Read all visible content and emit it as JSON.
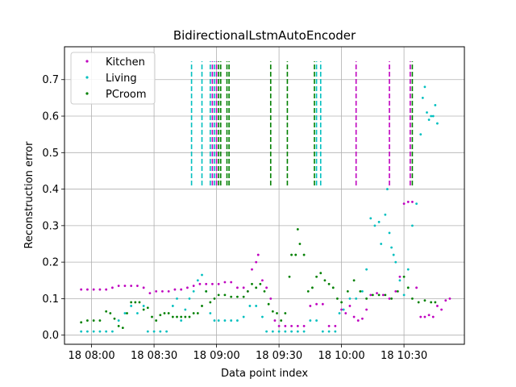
{
  "chart_data": {
    "type": "scatter",
    "title": "BidirectionalLstmAutoEncoder",
    "xlabel": "Data point index",
    "ylabel": "Reconstruction error",
    "xlim": [
      "18 07:47",
      "18 10:59"
    ],
    "ylim": [
      -0.025,
      0.79
    ],
    "xticks": [
      {
        "t": "18 08:00",
        "label": "18 08:00"
      },
      {
        "t": "18 08:30",
        "label": "18 08:30"
      },
      {
        "t": "18 09:00",
        "label": "18 09:00"
      },
      {
        "t": "18 09:30",
        "label": "18 09:30"
      },
      {
        "t": "18 10:00",
        "label": "18 10:00"
      },
      {
        "t": "18 10:30",
        "label": "18 10:30"
      }
    ],
    "yticks": [
      0.0,
      0.1,
      0.2,
      0.3,
      0.4,
      0.5,
      0.6,
      0.7
    ],
    "ytick_labels": [
      "0.0",
      "0.1",
      "0.2",
      "0.3",
      "0.4",
      "0.5",
      "0.6",
      "0.7"
    ],
    "grid": true,
    "legend_position": "top-left",
    "series": [
      {
        "name": "Kitchen",
        "color": "#bf00bf",
        "marker": "dot",
        "points": [
          [
            "18 07:55",
            0.125
          ],
          [
            "18 07:58",
            0.125
          ],
          [
            "18 08:01",
            0.125
          ],
          [
            "18 08:04",
            0.125
          ],
          [
            "18 08:07",
            0.125
          ],
          [
            "18 08:10",
            0.13
          ],
          [
            "18 08:13",
            0.135
          ],
          [
            "18 08:16",
            0.135
          ],
          [
            "18 08:19",
            0.135
          ],
          [
            "18 08:22",
            0.135
          ],
          [
            "18 08:25",
            0.13
          ],
          [
            "18 08:28",
            0.115
          ],
          [
            "18 08:31",
            0.12
          ],
          [
            "18 08:34",
            0.12
          ],
          [
            "18 08:37",
            0.12
          ],
          [
            "18 08:40",
            0.125
          ],
          [
            "18 08:43",
            0.125
          ],
          [
            "18 08:46",
            0.13
          ],
          [
            "18 08:49",
            0.135
          ],
          [
            "18 08:52",
            0.14
          ],
          [
            "18 08:55",
            0.14
          ],
          [
            "18 08:58",
            0.14
          ],
          [
            "18 09:01",
            0.14
          ],
          [
            "18 09:04",
            0.145
          ],
          [
            "18 09:07",
            0.145
          ],
          [
            "18 09:10",
            0.13
          ],
          [
            "18 09:13",
            0.13
          ],
          [
            "18 09:15",
            0.12
          ],
          [
            "18 09:17",
            0.18
          ],
          [
            "18 09:19",
            0.2
          ],
          [
            "18 09:20",
            0.22
          ],
          [
            "18 09:22",
            0.15
          ],
          [
            "18 09:24",
            0.13
          ],
          [
            "18 09:26",
            0.1
          ],
          [
            "18 09:28",
            0.04
          ],
          [
            "18 09:30",
            0.025
          ],
          [
            "18 09:33",
            0.025
          ],
          [
            "18 09:36",
            0.025
          ],
          [
            "18 09:39",
            0.025
          ],
          [
            "18 09:42",
            0.025
          ],
          [
            "18 09:45",
            0.08
          ],
          [
            "18 09:48",
            0.085
          ],
          [
            "18 09:51",
            0.085
          ],
          [
            "18 09:54",
            0.025
          ],
          [
            "18 09:57",
            0.025
          ],
          [
            "18 10:00",
            0.07
          ],
          [
            "18 10:02",
            0.06
          ],
          [
            "18 10:04",
            0.08
          ],
          [
            "18 10:06",
            0.05
          ],
          [
            "18 10:08",
            0.04
          ],
          [
            "18 10:10",
            0.045
          ],
          [
            "18 10:12",
            0.07
          ],
          [
            "18 10:14",
            0.11
          ],
          [
            "18 10:17",
            0.115
          ],
          [
            "18 10:20",
            0.11
          ],
          [
            "18 10:23",
            0.1
          ],
          [
            "18 10:26",
            0.12
          ],
          [
            "18 10:28",
            0.16
          ],
          [
            "18 10:30",
            0.36
          ],
          [
            "18 10:32",
            0.365
          ],
          [
            "18 10:34",
            0.365
          ],
          [
            "18 10:36",
            0.13
          ],
          [
            "18 10:38",
            0.05
          ],
          [
            "18 10:40",
            0.05
          ],
          [
            "18 10:42",
            0.055
          ],
          [
            "18 10:44",
            0.05
          ],
          [
            "18 10:46",
            0.08
          ],
          [
            "18 10:48",
            0.07
          ],
          [
            "18 10:50",
            0.095
          ],
          [
            "18 10:52",
            0.1
          ]
        ]
      },
      {
        "name": "Living",
        "color": "#00bfbf",
        "marker": "dot",
        "points": [
          [
            "18 07:55",
            0.01
          ],
          [
            "18 07:58",
            0.01
          ],
          [
            "18 08:01",
            0.01
          ],
          [
            "18 08:04",
            0.01
          ],
          [
            "18 08:07",
            0.01
          ],
          [
            "18 08:10",
            0.01
          ],
          [
            "18 08:13",
            0.04
          ],
          [
            "18 08:16",
            0.06
          ],
          [
            "18 08:19",
            0.08
          ],
          [
            "18 08:22",
            0.06
          ],
          [
            "18 08:25",
            0.08
          ],
          [
            "18 08:27",
            0.01
          ],
          [
            "18 08:30",
            0.01
          ],
          [
            "18 08:33",
            0.01
          ],
          [
            "18 08:36",
            0.01
          ],
          [
            "18 08:39",
            0.08
          ],
          [
            "18 08:41",
            0.1
          ],
          [
            "18 08:43",
            0.04
          ],
          [
            "18 08:45",
            0.07
          ],
          [
            "18 08:47",
            0.1
          ],
          [
            "18 08:49",
            0.12
          ],
          [
            "18 08:51",
            0.15
          ],
          [
            "18 08:53",
            0.165
          ],
          [
            "18 08:55",
            0.12
          ],
          [
            "18 08:57",
            0.06
          ],
          [
            "18 08:59",
            0.04
          ],
          [
            "18 09:01",
            0.04
          ],
          [
            "18 09:04",
            0.04
          ],
          [
            "18 09:07",
            0.04
          ],
          [
            "18 09:10",
            0.04
          ],
          [
            "18 09:13",
            0.05
          ],
          [
            "18 09:16",
            0.08
          ],
          [
            "18 09:19",
            0.08
          ],
          [
            "18 09:22",
            0.05
          ],
          [
            "18 09:24",
            0.01
          ],
          [
            "18 09:27",
            0.01
          ],
          [
            "18 09:30",
            0.01
          ],
          [
            "18 09:33",
            0.01
          ],
          [
            "18 09:36",
            0.01
          ],
          [
            "18 09:39",
            0.01
          ],
          [
            "18 09:42",
            0.01
          ],
          [
            "18 09:45",
            0.04
          ],
          [
            "18 09:48",
            0.04
          ],
          [
            "18 09:51",
            0.01
          ],
          [
            "18 09:54",
            0.01
          ],
          [
            "18 09:57",
            0.01
          ],
          [
            "18 09:59",
            0.06
          ],
          [
            "18 10:01",
            0.07
          ],
          [
            "18 10:04",
            0.1
          ],
          [
            "18 10:07",
            0.1
          ],
          [
            "18 10:10",
            0.12
          ],
          [
            "18 10:12",
            0.18
          ],
          [
            "18 10:14",
            0.32
          ],
          [
            "18 10:16",
            0.3
          ],
          [
            "18 10:18",
            0.31
          ],
          [
            "18 10:19",
            0.25
          ],
          [
            "18 10:21",
            0.33
          ],
          [
            "18 10:22",
            0.4
          ],
          [
            "18 10:23",
            0.28
          ],
          [
            "18 10:24",
            0.24
          ],
          [
            "18 10:25",
            0.22
          ],
          [
            "18 10:26",
            0.2
          ],
          [
            "18 10:28",
            0.15
          ],
          [
            "18 10:30",
            0.11
          ],
          [
            "18 10:32",
            0.18
          ],
          [
            "18 10:34",
            0.3
          ],
          [
            "18 10:36",
            0.36
          ],
          [
            "18 10:38",
            0.55
          ],
          [
            "18 10:39",
            0.65
          ],
          [
            "18 10:40",
            0.68
          ],
          [
            "18 10:41",
            0.61
          ],
          [
            "18 10:42",
            0.59
          ],
          [
            "18 10:43",
            0.6
          ],
          [
            "18 10:44",
            0.6
          ],
          [
            "18 10:45",
            0.63
          ],
          [
            "18 10:46",
            0.58
          ]
        ]
      },
      {
        "name": "PCroom",
        "color": "#008000",
        "marker": "dot",
        "points": [
          [
            "18 07:55",
            0.035
          ],
          [
            "18 07:58",
            0.04
          ],
          [
            "18 08:01",
            0.04
          ],
          [
            "18 08:04",
            0.04
          ],
          [
            "18 08:07",
            0.065
          ],
          [
            "18 08:09",
            0.06
          ],
          [
            "18 08:11",
            0.045
          ],
          [
            "18 08:13",
            0.025
          ],
          [
            "18 08:15",
            0.02
          ],
          [
            "18 08:17",
            0.06
          ],
          [
            "18 08:19",
            0.09
          ],
          [
            "18 08:21",
            0.09
          ],
          [
            "18 08:23",
            0.09
          ],
          [
            "18 08:25",
            0.07
          ],
          [
            "18 08:27",
            0.075
          ],
          [
            "18 08:29",
            0.05
          ],
          [
            "18 08:31",
            0.04
          ],
          [
            "18 08:33",
            0.055
          ],
          [
            "18 08:35",
            0.06
          ],
          [
            "18 08:37",
            0.06
          ],
          [
            "18 08:39",
            0.05
          ],
          [
            "18 08:41",
            0.05
          ],
          [
            "18 08:43",
            0.05
          ],
          [
            "18 08:45",
            0.05
          ],
          [
            "18 08:47",
            0.05
          ],
          [
            "18 08:49",
            0.06
          ],
          [
            "18 08:51",
            0.06
          ],
          [
            "18 08:53",
            0.08
          ],
          [
            "18 08:55",
            0.12
          ],
          [
            "18 08:57",
            0.09
          ],
          [
            "18 08:59",
            0.1
          ],
          [
            "18 09:01",
            0.11
          ],
          [
            "18 09:04",
            0.11
          ],
          [
            "18 09:07",
            0.105
          ],
          [
            "18 09:10",
            0.105
          ],
          [
            "18 09:13",
            0.105
          ],
          [
            "18 09:15",
            0.12
          ],
          [
            "18 09:17",
            0.14
          ],
          [
            "18 09:19",
            0.13
          ],
          [
            "18 09:21",
            0.14
          ],
          [
            "18 09:23",
            0.12
          ],
          [
            "18 09:25",
            0.085
          ],
          [
            "18 09:27",
            0.065
          ],
          [
            "18 09:29",
            0.06
          ],
          [
            "18 09:31",
            0.04
          ],
          [
            "18 09:33",
            0.06
          ],
          [
            "18 09:35",
            0.16
          ],
          [
            "18 09:36",
            0.22
          ],
          [
            "18 09:38",
            0.22
          ],
          [
            "18 09:39",
            0.29
          ],
          [
            "18 09:40",
            0.25
          ],
          [
            "18 09:42",
            0.22
          ],
          [
            "18 09:44",
            0.12
          ],
          [
            "18 09:46",
            0.13
          ],
          [
            "18 09:48",
            0.16
          ],
          [
            "18 09:50",
            0.17
          ],
          [
            "18 09:52",
            0.15
          ],
          [
            "18 09:54",
            0.14
          ],
          [
            "18 09:56",
            0.13
          ],
          [
            "18 09:58",
            0.1
          ],
          [
            "18 10:00",
            0.09
          ],
          [
            "18 10:03",
            0.12
          ],
          [
            "18 10:06",
            0.15
          ],
          [
            "18 10:09",
            0.12
          ],
          [
            "18 10:12",
            0.1
          ],
          [
            "18 10:15",
            0.11
          ],
          [
            "18 10:18",
            0.11
          ],
          [
            "18 10:21",
            0.11
          ],
          [
            "18 10:24",
            0.1
          ],
          [
            "18 10:27",
            0.12
          ],
          [
            "18 10:30",
            0.16
          ],
          [
            "18 10:32",
            0.13
          ],
          [
            "18 10:34",
            0.1
          ],
          [
            "18 10:37",
            0.09
          ],
          [
            "18 10:40",
            0.095
          ],
          [
            "18 10:43",
            0.09
          ],
          [
            "18 10:45",
            0.09
          ]
        ]
      }
    ],
    "vlines": [
      {
        "t": "18 08:48",
        "color": "#00bfbf",
        "y": [
          0.41,
          0.75
        ]
      },
      {
        "t": "18 08:53",
        "color": "#00bfbf",
        "y": [
          0.41,
          0.75
        ]
      },
      {
        "t": "18 08:57",
        "color": "#00bfbf",
        "y": [
          0.41,
          0.75
        ]
      },
      {
        "t": "18 08:58",
        "color": "#bf00bf",
        "y": [
          0.41,
          0.75
        ]
      },
      {
        "t": "18 08:59",
        "color": "#00bfbf",
        "y": [
          0.41,
          0.75
        ]
      },
      {
        "t": "18 09:00",
        "color": "#bf00bf",
        "y": [
          0.41,
          0.75
        ]
      },
      {
        "t": "18 09:01",
        "color": "#008000",
        "y": [
          0.41,
          0.75
        ]
      },
      {
        "t": "18 09:02",
        "color": "#008000",
        "y": [
          0.41,
          0.75
        ]
      },
      {
        "t": "18 09:05",
        "color": "#008000",
        "y": [
          0.41,
          0.75
        ]
      },
      {
        "t": "18 09:06",
        "color": "#008000",
        "y": [
          0.41,
          0.75
        ]
      },
      {
        "t": "18 09:26",
        "color": "#008000",
        "y": [
          0.41,
          0.75
        ]
      },
      {
        "t": "18 09:34",
        "color": "#008000",
        "y": [
          0.41,
          0.75
        ]
      },
      {
        "t": "18 09:47",
        "color": "#008000",
        "y": [
          0.41,
          0.75
        ]
      },
      {
        "t": "18 09:48",
        "color": "#00bfbf",
        "y": [
          0.41,
          0.75
        ]
      },
      {
        "t": "18 09:50",
        "color": "#00bfbf",
        "y": [
          0.41,
          0.75
        ]
      },
      {
        "t": "18 10:07",
        "color": "#bf00bf",
        "y": [
          0.41,
          0.75
        ]
      },
      {
        "t": "18 10:23",
        "color": "#bf00bf",
        "y": [
          0.41,
          0.75
        ]
      },
      {
        "t": "18 10:33",
        "color": "#bf00bf",
        "y": [
          0.41,
          0.75
        ]
      },
      {
        "t": "18 10:34",
        "color": "#008000",
        "y": [
          0.41,
          0.75
        ]
      }
    ]
  }
}
